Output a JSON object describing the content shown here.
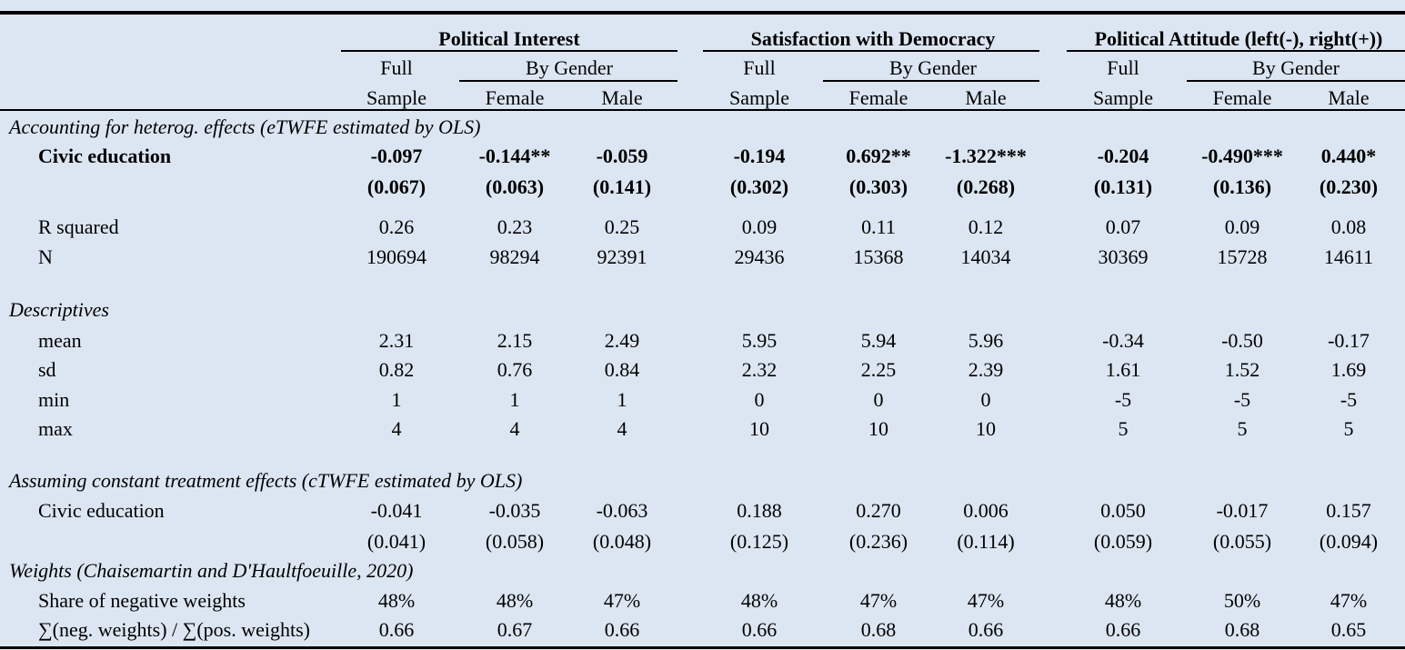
{
  "table": {
    "groups": [
      {
        "title": "Political Interest",
        "full_top": "Full",
        "full_bottom": "Sample",
        "by_gender": "By Gender",
        "female": "Female",
        "male": "Male"
      },
      {
        "title": "Satisfaction with Democracy",
        "full_top": "Full",
        "full_bottom": "Sample",
        "by_gender": "By Gender",
        "female": "Female",
        "male": "Male"
      },
      {
        "title": "Political Attitude (left(-), right(+))",
        "full_top": "Full",
        "full_bottom": "Sample",
        "by_gender": "By Gender",
        "female": "Female",
        "male": "Male"
      }
    ],
    "sections": {
      "heterog": "Accounting for heterog. effects (eTWFE estimated by OLS)",
      "descriptives": "Descriptives",
      "constant": "Assuming constant treatment effects (cTWFE estimated by OLS)",
      "weights": "Weights (Chaisemartin and D'Haultfoeuille, 2020)"
    },
    "rows": [
      {
        "key": "civic_e",
        "label": "Civic education",
        "values": [
          "-0.097",
          "-0.144**",
          "-0.059",
          "-0.194",
          "0.692**",
          "-1.322***",
          "-0.204",
          "-0.490***",
          "0.440*"
        ]
      },
      {
        "key": "se_e",
        "label": "",
        "values": [
          "(0.067)",
          "(0.063)",
          "(0.141)",
          "(0.302)",
          "(0.303)",
          "(0.268)",
          "(0.131)",
          "(0.136)",
          "(0.230)"
        ]
      },
      {
        "key": "r2",
        "label": "R squared",
        "values": [
          "0.26",
          "0.23",
          "0.25",
          "0.09",
          "0.11",
          "0.12",
          "0.07",
          "0.09",
          "0.08"
        ]
      },
      {
        "key": "n",
        "label": "N",
        "values": [
          "190694",
          "98294",
          "92391",
          "29436",
          "15368",
          "14034",
          "30369",
          "15728",
          "14611"
        ]
      },
      {
        "key": "mean",
        "label": "mean",
        "values": [
          "2.31",
          "2.15",
          "2.49",
          "5.95",
          "5.94",
          "5.96",
          "-0.34",
          "-0.50",
          "-0.17"
        ]
      },
      {
        "key": "sd",
        "label": "sd",
        "values": [
          "0.82",
          "0.76",
          "0.84",
          "2.32",
          "2.25",
          "2.39",
          "1.61",
          "1.52",
          "1.69"
        ]
      },
      {
        "key": "min",
        "label": "min",
        "values": [
          "1",
          "1",
          "1",
          "0",
          "0",
          "0",
          "-5",
          "-5",
          "-5"
        ]
      },
      {
        "key": "max",
        "label": "max",
        "values": [
          "4",
          "4",
          "4",
          "10",
          "10",
          "10",
          "5",
          "5",
          "5"
        ]
      },
      {
        "key": "civic_c",
        "label": "Civic education",
        "values": [
          "-0.041",
          "-0.035",
          "-0.063",
          "0.188",
          "0.270",
          "0.006",
          "0.050",
          "-0.017",
          "0.157"
        ]
      },
      {
        "key": "se_c",
        "label": "",
        "values": [
          "(0.041)",
          "(0.058)",
          "(0.048)",
          "(0.125)",
          "(0.236)",
          "(0.114)",
          "(0.059)",
          "(0.055)",
          "(0.094)"
        ]
      },
      {
        "key": "share_neg",
        "label": "Share of negative weights",
        "values": [
          "48%",
          "48%",
          "47%",
          "48%",
          "47%",
          "47%",
          "48%",
          "50%",
          "47%"
        ]
      },
      {
        "key": "ratio",
        "label": "∑(neg. weights) / ∑(pos. weights)",
        "values": [
          "0.66",
          "0.67",
          "0.66",
          "0.66",
          "0.68",
          "0.66",
          "0.66",
          "0.68",
          "0.65"
        ]
      }
    ]
  }
}
